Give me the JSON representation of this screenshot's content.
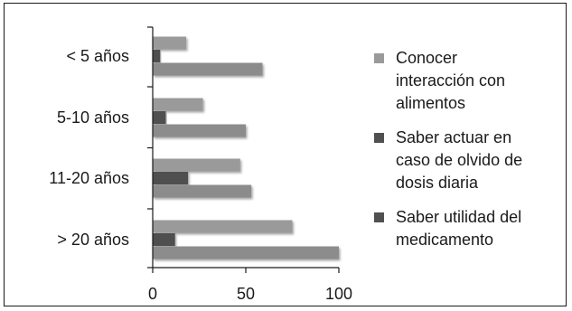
{
  "chart_data": {
    "type": "bar",
    "orientation": "horizontal",
    "categories": [
      "< 5 años",
      "5-10 años",
      "11-20 años",
      "> 20 años"
    ],
    "series": [
      {
        "name": "Conocer interacción con alimentos",
        "values": [
          18,
          27,
          47,
          75
        ],
        "color": "#9a9a9a"
      },
      {
        "name": "Saber actuar en caso de olvido de dosis diaria",
        "values": [
          4,
          7,
          19,
          12
        ],
        "color": "#505050"
      },
      {
        "name": "Saber utilidad del medicamento",
        "values": [
          59,
          50,
          53,
          100
        ],
        "color": "#8c8c8c"
      }
    ],
    "legend_lines": [
      [
        "Conocer",
        "interacción con",
        "alimentos"
      ],
      [
        "Saber actuar en",
        "caso de olvido de",
        "dosis diaria"
      ],
      [
        "Saber utilidad del",
        "medicamento"
      ]
    ],
    "legend_swatch_colors": [
      "#9a9a9a",
      "#505050",
      "#505050"
    ],
    "xticks": [
      0,
      50,
      100
    ],
    "xlim": [
      0,
      100
    ],
    "grid": false,
    "legend_position": "right"
  }
}
